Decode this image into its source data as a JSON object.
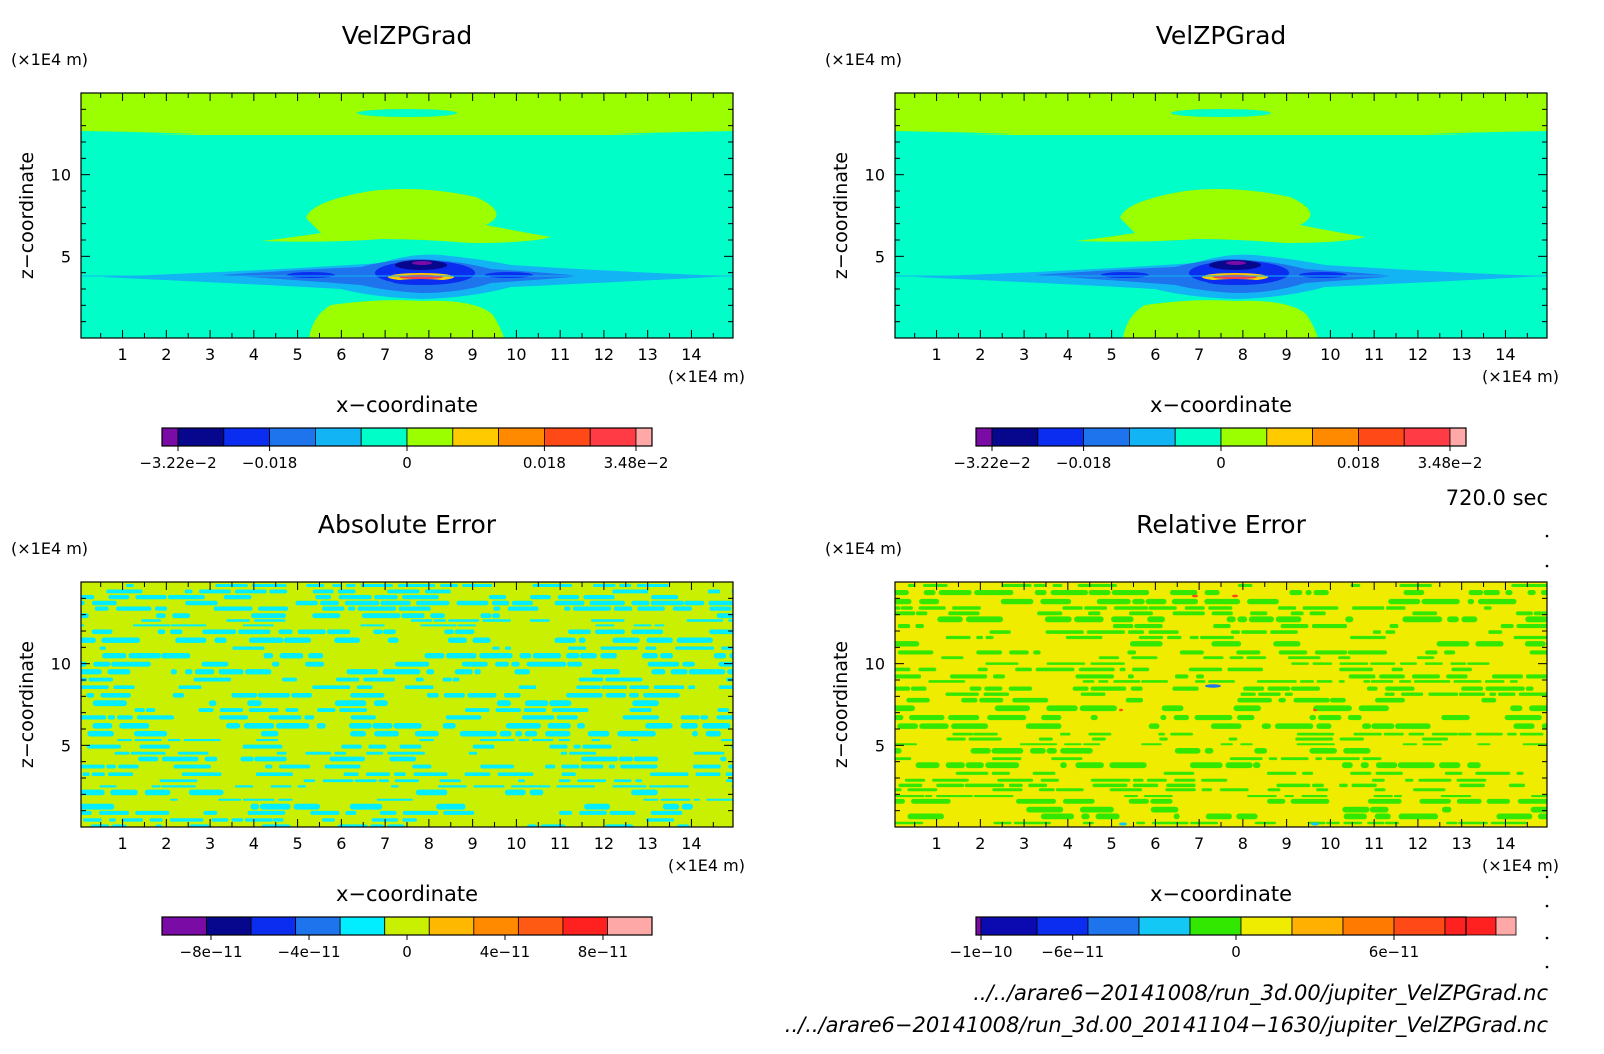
{
  "panels": [
    {
      "title": "VelZPGrad",
      "xlabel": "x−coordinate",
      "ylabel": "z−coordinate",
      "x_unit": "(×1E4 m)",
      "y_unit": "(×1E4 m)",
      "field": "velzpgrad",
      "colorbar": {
        "colors": [
          "#7a0ca5",
          "#07078e",
          "#0a2df0",
          "#1e74ec",
          "#13b4f4",
          "#00ffc8",
          "#9cff00",
          "#ffca00",
          "#ff8a00",
          "#ff4a18",
          "#ff3c46",
          "#ffa8a8"
        ],
        "ticks": [
          "−3.22e−2",
          "−0.018",
          "0",
          "0.018",
          "3.48e−2"
        ]
      }
    },
    {
      "title": "VelZPGrad",
      "xlabel": "x−coordinate",
      "ylabel": "z−coordinate",
      "x_unit": "(×1E4 m)",
      "y_unit": "(×1E4 m)",
      "field": "velzpgrad",
      "colorbar": {
        "colors": [
          "#7a0ca5",
          "#07078e",
          "#0a2df0",
          "#1e74ec",
          "#13b4f4",
          "#00ffc8",
          "#9cff00",
          "#ffca00",
          "#ff8a00",
          "#ff4a18",
          "#ff3c46",
          "#ffa8a8"
        ],
        "ticks": [
          "−3.22e−2",
          "−0.018",
          "0",
          "0.018",
          "3.48e−2"
        ]
      }
    },
    {
      "title": "Absolute Error",
      "xlabel": "x−coordinate",
      "ylabel": "z−coordinate",
      "x_unit": "(×1E4 m)",
      "y_unit": "(×1E4 m)",
      "field": "abserr",
      "colorbar": {
        "colors": [
          "#7a0ca5",
          "#07078e",
          "#0a2df0",
          "#1e74ec",
          "#00eeff",
          "#c8f000",
          "#ffb800",
          "#ff8a00",
          "#ff5a14",
          "#ff2020",
          "#ffa8a8"
        ],
        "ticks": [
          "−8e−11",
          "−4e−11",
          "0",
          "4e−11",
          "8e−11"
        ]
      }
    },
    {
      "title": "Relative Error",
      "xlabel": "x−coordinate",
      "ylabel": "z−coordinate",
      "x_unit": "(×1E4 m)",
      "y_unit": "(×1E4 m)",
      "field": "relerr",
      "colorbar": {
        "colors": [
          "#7a0ca5",
          "#0a0ab0",
          "#0a2df0",
          "#1e74ec",
          "#13c8f4",
          "#33e800",
          "#f0ec00",
          "#ffb000",
          "#ff7a00",
          "#ff4a18",
          "#ff2020",
          "#ffa8a8"
        ],
        "ticks": [
          "−1e−10",
          "−6e−11",
          "0",
          "6e−11"
        ]
      }
    }
  ],
  "chart_data": [
    {
      "type": "heatmap",
      "title": "VelZPGrad",
      "xlabel": "x−coordinate",
      "ylabel": "z−coordinate",
      "x_ticks": [
        1,
        2,
        3,
        4,
        5,
        6,
        7,
        8,
        9,
        10,
        11,
        12,
        13,
        14
      ],
      "y_ticks": [
        5,
        10
      ],
      "xlim": [
        0.05,
        14.95
      ],
      "ylim": [
        0,
        15
      ],
      "units": "×1E4 m",
      "colorbar_range": [
        -0.0322,
        0.0348
      ],
      "colorbar_ticks": [
        "−3.22e−2",
        "−0.018",
        "0",
        "0.018",
        "3.48e−2"
      ]
    },
    {
      "type": "heatmap",
      "title": "VelZPGrad",
      "xlabel": "x−coordinate",
      "ylabel": "z−coordinate",
      "x_ticks": [
        1,
        2,
        3,
        4,
        5,
        6,
        7,
        8,
        9,
        10,
        11,
        12,
        13,
        14
      ],
      "y_ticks": [
        5,
        10
      ],
      "xlim": [
        0.05,
        14.95
      ],
      "ylim": [
        0,
        15
      ],
      "units": "×1E4 m",
      "colorbar_range": [
        -0.0322,
        0.0348
      ],
      "colorbar_ticks": [
        "−3.22e−2",
        "−0.018",
        "0",
        "0.018",
        "3.48e−2"
      ]
    },
    {
      "type": "heatmap",
      "title": "Absolute Error",
      "xlabel": "x−coordinate",
      "ylabel": "z−coordinate",
      "x_ticks": [
        1,
        2,
        3,
        4,
        5,
        6,
        7,
        8,
        9,
        10,
        11,
        12,
        13,
        14
      ],
      "y_ticks": [
        5,
        10
      ],
      "xlim": [
        0.05,
        14.95
      ],
      "ylim": [
        0,
        15
      ],
      "units": "×1E4 m",
      "colorbar_range": [
        -1e-10,
        1e-10
      ],
      "colorbar_ticks": [
        "−8e−11",
        "−4e−11",
        "0",
        "4e−11",
        "8e−11"
      ]
    },
    {
      "type": "heatmap",
      "title": "Relative Error",
      "xlabel": "x−coordinate",
      "ylabel": "z−coordinate",
      "x_ticks": [
        1,
        2,
        3,
        4,
        5,
        6,
        7,
        8,
        9,
        10,
        11,
        12,
        13,
        14
      ],
      "y_ticks": [
        5,
        10
      ],
      "xlim": [
        0.05,
        14.95
      ],
      "ylim": [
        0,
        15
      ],
      "units": "×1E4 m",
      "colorbar_range": [
        -1e-10,
        1.2e-10
      ],
      "colorbar_ticks": [
        "−1e−10",
        "−6e−11",
        "0",
        "6e−11"
      ]
    }
  ],
  "time_label": "720.0 sec",
  "footer_lines": [
    "../../arare6−20141008/run_3d.00/jupiter_VelZPGrad.nc",
    "../../arare6−20141008/run_3d.00_20141104−1630/jupiter_VelZPGrad.nc"
  ]
}
